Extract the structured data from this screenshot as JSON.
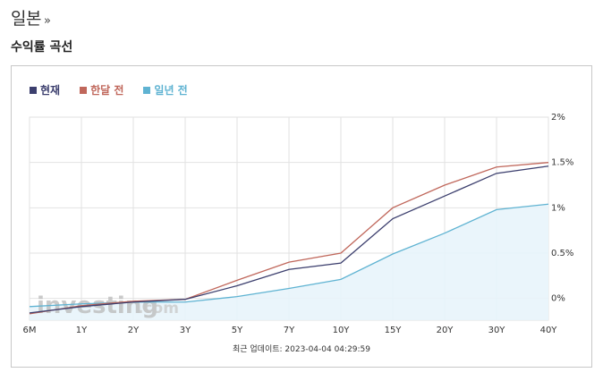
{
  "page": {
    "title": "일본",
    "title_suffix": "»",
    "section_title": "수익률 곡선"
  },
  "watermark": {
    "text": "investing",
    "suffix": ".com"
  },
  "updated_label": "최근 업데이트: 2023-04-04 04:29:59",
  "colors": {
    "current": "#3c3f6e",
    "month_ago": "#c0675b",
    "year_ago": "#5fb3d2",
    "area_fill": "#e8f4fb",
    "grid": "#e2e2e2"
  },
  "chart_data": {
    "type": "line",
    "categories": [
      "6M",
      "1Y",
      "2Y",
      "3Y",
      "5Y",
      "7Y",
      "10Y",
      "15Y",
      "20Y",
      "30Y",
      "40Y"
    ],
    "series": [
      {
        "name": "현재",
        "color": "#3c3f6e",
        "values": [
          -0.16,
          -0.09,
          -0.04,
          -0.01,
          0.14,
          0.32,
          0.39,
          0.88,
          1.13,
          1.38,
          1.46
        ]
      },
      {
        "name": "한달 전",
        "color": "#c0675b",
        "values": [
          -0.17,
          -0.08,
          -0.03,
          -0.01,
          0.2,
          0.4,
          0.5,
          1.0,
          1.25,
          1.45,
          1.5
        ]
      },
      {
        "name": "일년 전",
        "color": "#5fb3d2",
        "values": [
          -0.09,
          -0.06,
          -0.04,
          -0.04,
          0.02,
          0.11,
          0.21,
          0.49,
          0.72,
          0.98,
          1.04
        ]
      }
    ],
    "y_ticks": [
      "2%",
      "1.5%",
      "1%",
      "0.5%",
      "0%"
    ],
    "y_tick_values": [
      2,
      1.5,
      1,
      0.5,
      0
    ],
    "ylim": [
      -0.24,
      2
    ],
    "grid": true,
    "legend_position": "top-left",
    "area_series": "일년 전"
  }
}
